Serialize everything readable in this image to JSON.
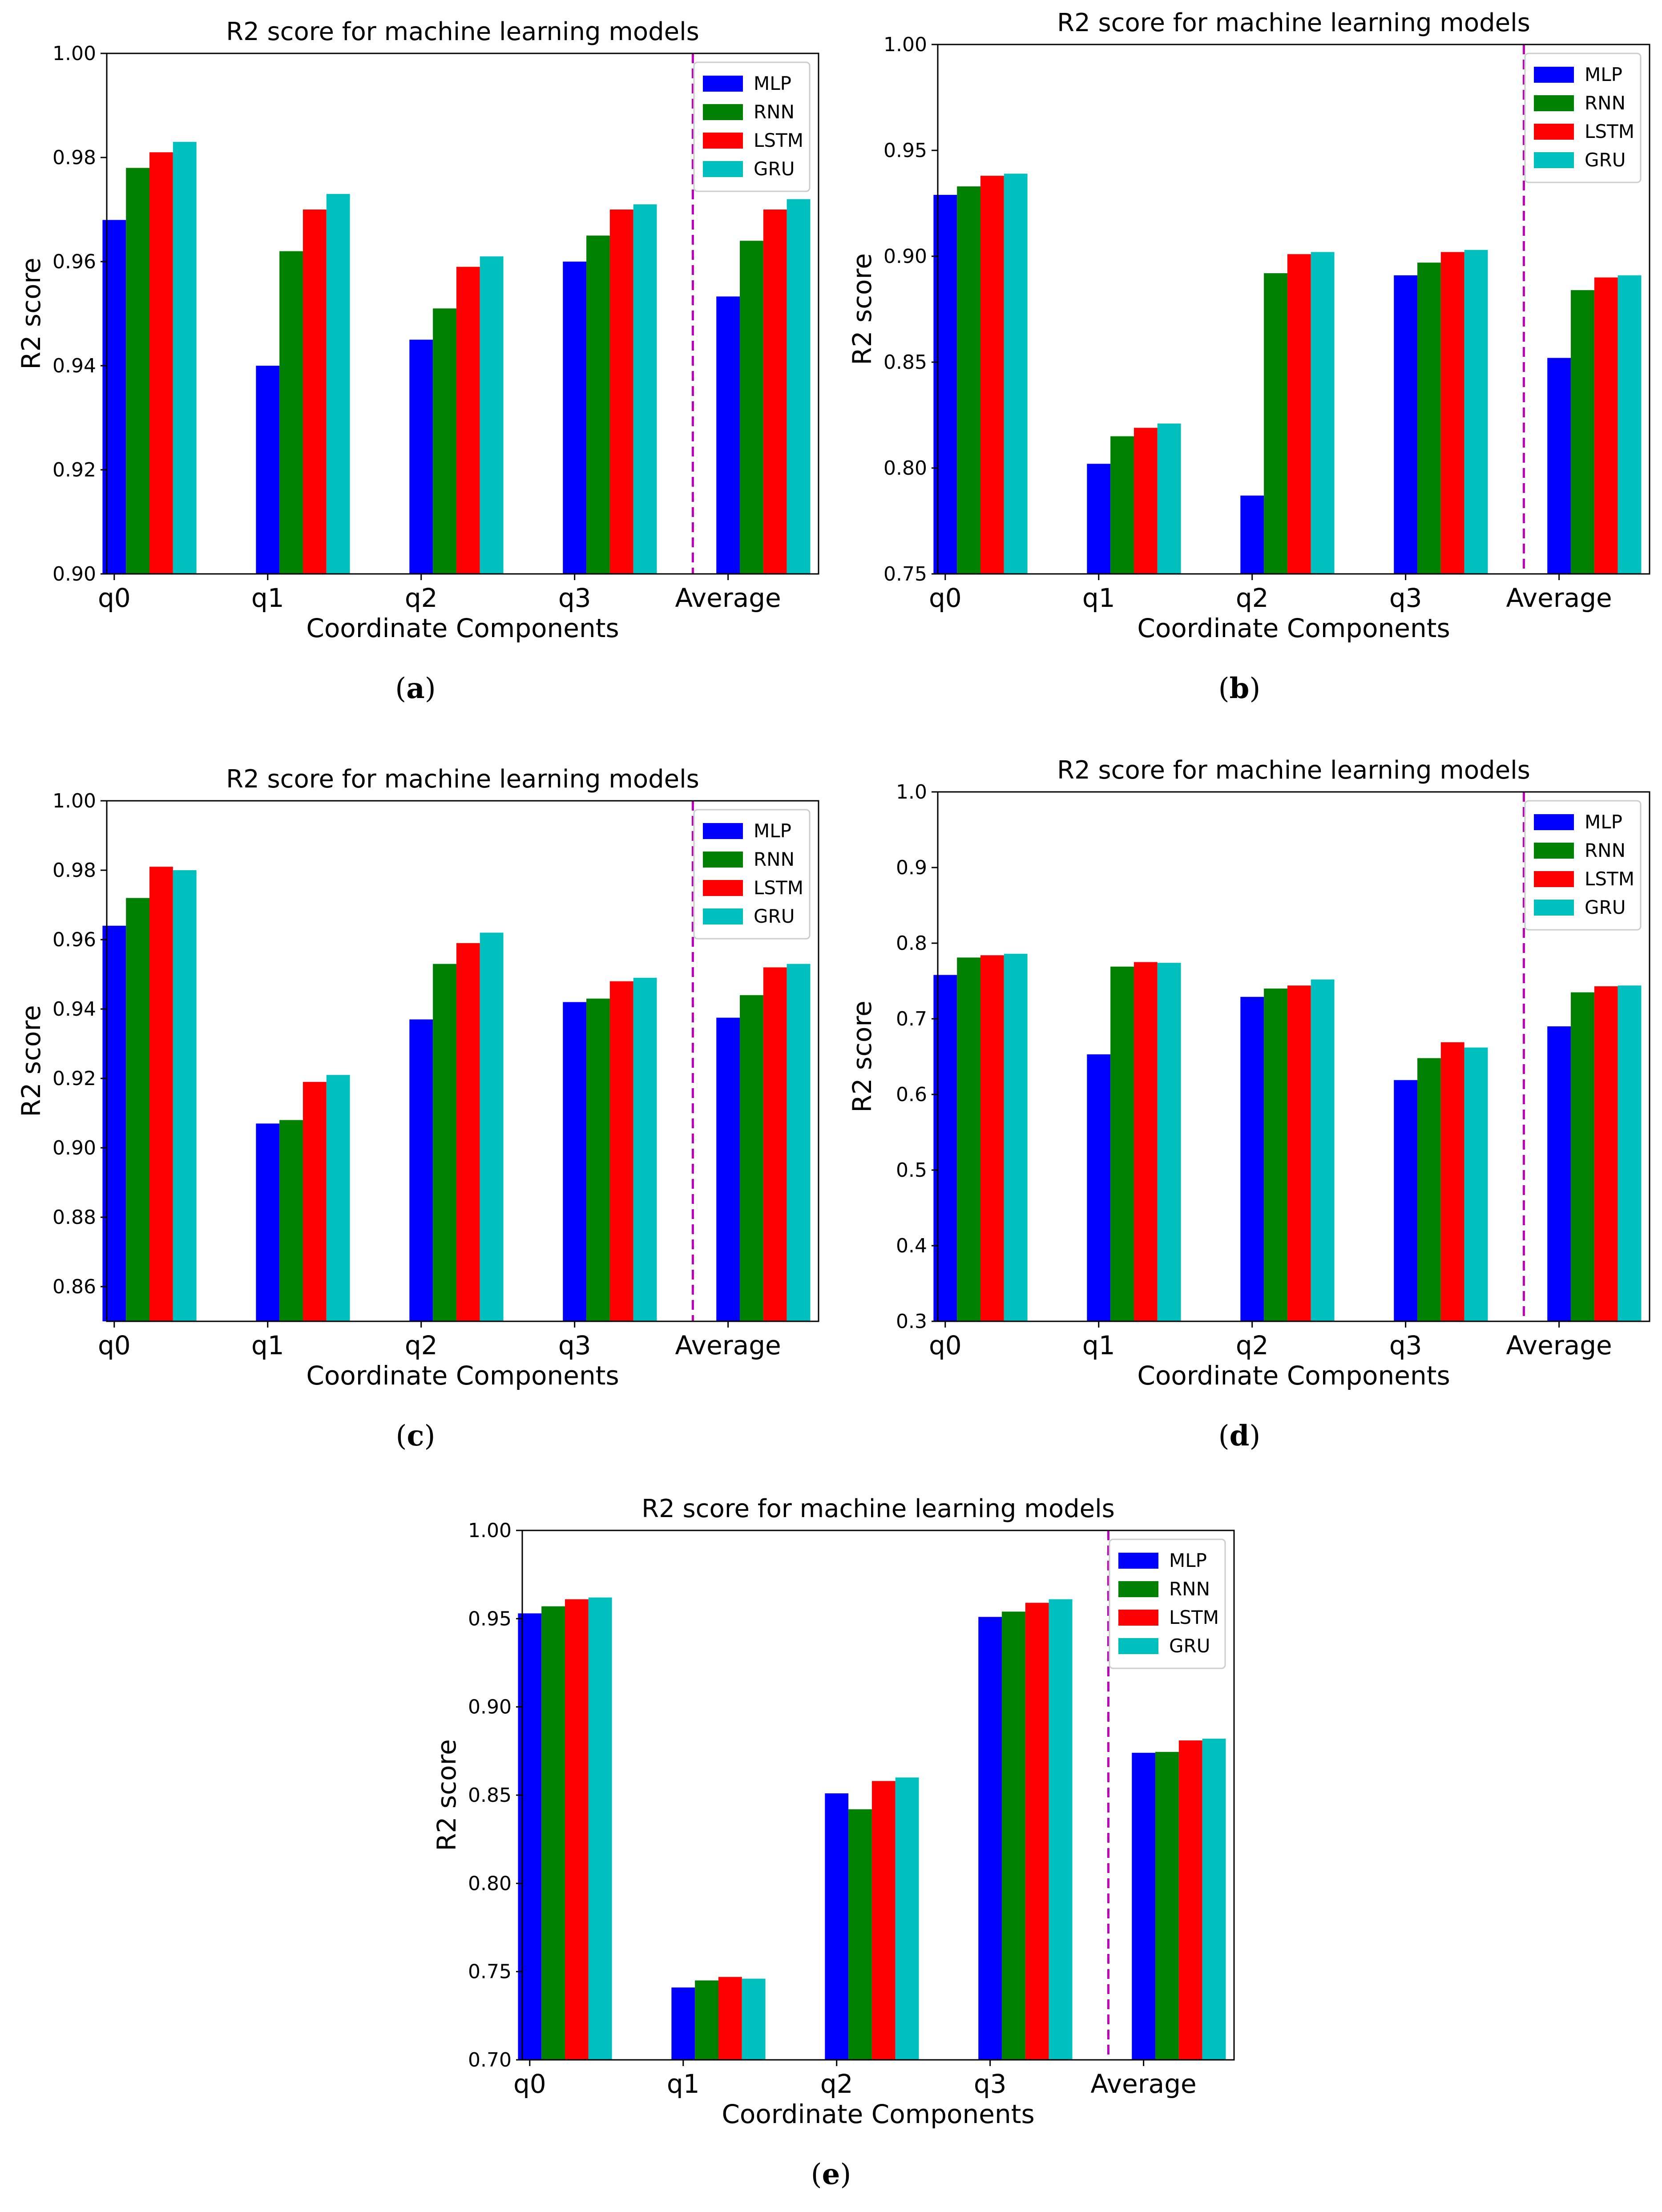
{
  "chart_data": [
    {
      "type": "bar",
      "caption": "a",
      "title": "R2 score for machine learning models",
      "xlabel": "Coordinate Components",
      "ylabel": "R2 score",
      "categories": [
        "q0",
        "q1",
        "q2",
        "q3",
        "Average"
      ],
      "ylim": [
        0.9,
        1.0
      ],
      "yticks": [
        "0.90",
        "0.92",
        "0.94",
        "0.96",
        "0.98",
        "1.00"
      ],
      "series": [
        {
          "name": "MLP",
          "color": "#0000ff",
          "values": [
            0.968,
            0.94,
            0.945,
            0.96,
            0.9533
          ]
        },
        {
          "name": "RNN",
          "color": "#008000",
          "values": [
            0.978,
            0.962,
            0.951,
            0.965,
            0.964
          ]
        },
        {
          "name": "LSTM",
          "color": "#ff0000",
          "values": [
            0.981,
            0.97,
            0.959,
            0.97,
            0.97
          ]
        },
        {
          "name": "GRU",
          "color": "#00bfbf",
          "values": [
            0.983,
            0.973,
            0.961,
            0.971,
            0.972
          ]
        }
      ],
      "legend": "top-right",
      "divider": {
        "style": "dashed",
        "color": "#bf00bf",
        "between": [
          "q3",
          "Average"
        ]
      }
    },
    {
      "type": "bar",
      "caption": "b",
      "title": "R2 score for machine learning models",
      "xlabel": "Coordinate Components",
      "ylabel": "R2 score",
      "categories": [
        "q0",
        "q1",
        "q2",
        "q3",
        "Average"
      ],
      "ylim": [
        0.75,
        1.0
      ],
      "yticks": [
        "0.75",
        "0.80",
        "0.85",
        "0.90",
        "0.95",
        "1.00"
      ],
      "series": [
        {
          "name": "MLP",
          "color": "#0000ff",
          "values": [
            0.929,
            0.802,
            0.787,
            0.891,
            0.852
          ]
        },
        {
          "name": "RNN",
          "color": "#008000",
          "values": [
            0.933,
            0.815,
            0.892,
            0.897,
            0.884
          ]
        },
        {
          "name": "LSTM",
          "color": "#ff0000",
          "values": [
            0.938,
            0.819,
            0.901,
            0.902,
            0.89
          ]
        },
        {
          "name": "GRU",
          "color": "#00bfbf",
          "values": [
            0.939,
            0.821,
            0.902,
            0.903,
            0.891
          ]
        }
      ],
      "legend": "top-right",
      "divider": {
        "style": "dashed",
        "color": "#bf00bf",
        "between": [
          "q3",
          "Average"
        ]
      }
    },
    {
      "type": "bar",
      "caption": "c",
      "title": "R2 score for machine learning models",
      "xlabel": "Coordinate Components",
      "ylabel": "R2 score",
      "categories": [
        "q0",
        "q1",
        "q2",
        "q3",
        "Average"
      ],
      "ylim": [
        0.85,
        1.0
      ],
      "yticks": [
        "0.86",
        "0.88",
        "0.90",
        "0.92",
        "0.94",
        "0.96",
        "0.98",
        "1.00"
      ],
      "series": [
        {
          "name": "MLP",
          "color": "#0000ff",
          "values": [
            0.964,
            0.907,
            0.937,
            0.942,
            0.9375
          ]
        },
        {
          "name": "RNN",
          "color": "#008000",
          "values": [
            0.972,
            0.908,
            0.953,
            0.943,
            0.944
          ]
        },
        {
          "name": "LSTM",
          "color": "#ff0000",
          "values": [
            0.981,
            0.919,
            0.959,
            0.948,
            0.952
          ]
        },
        {
          "name": "GRU",
          "color": "#00bfbf",
          "values": [
            0.98,
            0.921,
            0.962,
            0.949,
            0.953
          ]
        }
      ],
      "legend": "top-right",
      "divider": {
        "style": "dashed",
        "color": "#bf00bf",
        "between": [
          "q3",
          "Average"
        ]
      }
    },
    {
      "type": "bar",
      "caption": "d",
      "title": "R2 score for machine learning models",
      "xlabel": "Coordinate Components",
      "ylabel": "R2 score",
      "categories": [
        "q0",
        "q1",
        "q2",
        "q3",
        "Average"
      ],
      "ylim": [
        0.3,
        1.0
      ],
      "yticks": [
        "0.3",
        "0.4",
        "0.5",
        "0.6",
        "0.7",
        "0.8",
        "0.9",
        "1.0"
      ],
      "series": [
        {
          "name": "MLP",
          "color": "#0000ff",
          "values": [
            0.758,
            0.653,
            0.729,
            0.619,
            0.69
          ]
        },
        {
          "name": "RNN",
          "color": "#008000",
          "values": [
            0.781,
            0.769,
            0.74,
            0.648,
            0.735
          ]
        },
        {
          "name": "LSTM",
          "color": "#ff0000",
          "values": [
            0.784,
            0.775,
            0.744,
            0.669,
            0.743
          ]
        },
        {
          "name": "GRU",
          "color": "#00bfbf",
          "values": [
            0.786,
            0.774,
            0.752,
            0.662,
            0.744
          ]
        }
      ],
      "legend": "top-right",
      "divider": {
        "style": "dashed",
        "color": "#bf00bf",
        "between": [
          "q3",
          "Average"
        ]
      }
    },
    {
      "type": "bar",
      "caption": "e",
      "title": "R2 score for machine learning models",
      "xlabel": "Coordinate Components",
      "ylabel": "R2 score",
      "categories": [
        "q0",
        "q1",
        "q2",
        "q3",
        "Average"
      ],
      "ylim": [
        0.7,
        1.0
      ],
      "yticks": [
        "0.70",
        "0.75",
        "0.80",
        "0.85",
        "0.90",
        "0.95",
        "1.00"
      ],
      "series": [
        {
          "name": "MLP",
          "color": "#0000ff",
          "values": [
            0.953,
            0.741,
            0.851,
            0.951,
            0.874
          ]
        },
        {
          "name": "RNN",
          "color": "#008000",
          "values": [
            0.957,
            0.745,
            0.842,
            0.954,
            0.8745
          ]
        },
        {
          "name": "LSTM",
          "color": "#ff0000",
          "values": [
            0.961,
            0.747,
            0.858,
            0.959,
            0.881
          ]
        },
        {
          "name": "GRU",
          "color": "#00bfbf",
          "values": [
            0.962,
            0.746,
            0.86,
            0.961,
            0.882
          ]
        }
      ],
      "legend": "top-right",
      "divider": {
        "style": "dashed",
        "color": "#bf00bf",
        "between": [
          "q3",
          "Average"
        ]
      }
    }
  ]
}
